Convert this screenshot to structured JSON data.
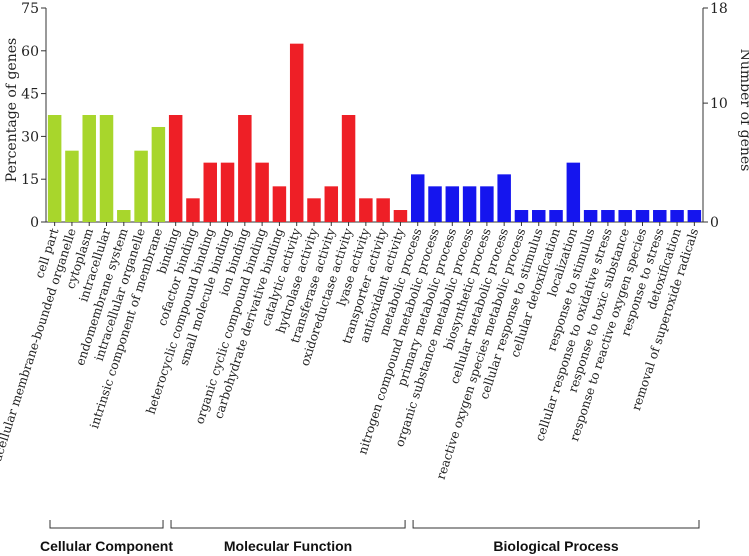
{
  "chart_data": {
    "type": "bar",
    "ylabel": "Percentage of genes",
    "y2label": "Number of genes",
    "ylim": [
      0,
      75
    ],
    "yticks": [
      0,
      15,
      30,
      45,
      60,
      75
    ],
    "y2lim": [
      0,
      18
    ],
    "y2ticks": [
      0,
      10,
      18
    ],
    "categories": [
      "cell part",
      "intracellular membrane-bounded organelle",
      "cytoplasm",
      "intracellular",
      "endomembrane system",
      "intracellular organelle",
      "intrinsic component of membrane",
      "binding",
      "cofactor binding",
      "heterocyclic compound binding",
      "small molecule binding",
      "ion binding",
      "organic cyclic compound binding",
      "carbohydrate derivative binding",
      "catalytic activity",
      "hydrolase activity",
      "transferase activity",
      "oxidoreductase activity",
      "lyase activity",
      "transporter activity",
      "antioxidant activity",
      "metabolic process",
      "nitrogen compound metabolic process",
      "primary metabolic process",
      "organic substance metabolic process",
      "biosynthetic process",
      "cellular metabolic process",
      "reactive oxygen species metabolic process",
      "cellular response to stimulus",
      "cellular detoxification",
      "localization",
      "response to stimulus",
      "cellular response to oxidative stress",
      "response to toxic substance",
      "response to reactive oxygen species",
      "response to stress",
      "detoxification",
      "removal of superoxide radicals"
    ],
    "values": [
      37.5,
      25,
      37.5,
      37.5,
      4.2,
      25,
      33.3,
      37.5,
      8.3,
      20.8,
      20.8,
      37.5,
      20.8,
      12.5,
      62.5,
      8.3,
      12.5,
      37.5,
      8.3,
      8.3,
      4.2,
      16.7,
      12.5,
      12.5,
      12.5,
      12.5,
      16.7,
      4.2,
      4.2,
      4.2,
      20.8,
      4.2,
      4.2,
      4.2,
      4.2,
      4.2,
      4.2,
      4.2
    ],
    "groups": [
      {
        "name": "Cellular Component",
        "start": 0,
        "end": 6,
        "color": "#a8d62c"
      },
      {
        "name": "Molecular Function",
        "start": 7,
        "end": 20,
        "color": "#ee1f26"
      },
      {
        "name": "Biological Process",
        "start": 21,
        "end": 37,
        "color": "#1515ee"
      }
    ]
  }
}
